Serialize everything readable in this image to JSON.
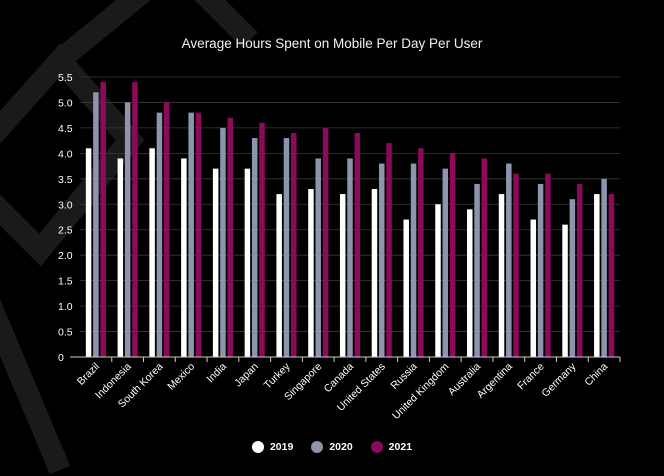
{
  "chart_data": {
    "type": "bar",
    "title": "Average Hours Spent on Mobile Per Day Per User",
    "xlabel": "",
    "ylabel": "",
    "ylim": [
      0,
      5.5
    ],
    "yticks": [
      "0",
      "0.5",
      "1.0",
      "1.5",
      "2.0",
      "2.5",
      "3.0",
      "3.5",
      "4.0",
      "4.5",
      "5.0",
      "5.5"
    ],
    "grid": true,
    "legend_position": "bottom-center",
    "categories": [
      "Brazil",
      "Indonesia",
      "South Korea",
      "Mexico",
      "India",
      "Japan",
      "Turkey",
      "Singapore",
      "Canada",
      "United States",
      "Russia",
      "United Kingdom",
      "Australia",
      "Argentina",
      "France",
      "Germany",
      "China"
    ],
    "series": [
      {
        "name": "2019",
        "color": "#ffffff",
        "values": [
          4.1,
          3.9,
          4.1,
          3.9,
          3.7,
          3.7,
          3.2,
          3.3,
          3.2,
          3.3,
          2.7,
          3.0,
          2.9,
          3.2,
          2.7,
          2.6,
          3.2
        ]
      },
      {
        "name": "2020",
        "color": "#8c95ab",
        "values": [
          5.2,
          5.0,
          4.8,
          4.8,
          4.5,
          4.3,
          4.3,
          3.9,
          3.9,
          3.8,
          3.8,
          3.7,
          3.4,
          3.8,
          3.4,
          3.1,
          3.5
        ]
      },
      {
        "name": "2021",
        "color": "#8c0a5a",
        "values": [
          5.4,
          5.4,
          5.0,
          4.8,
          4.7,
          4.6,
          4.4,
          4.5,
          4.4,
          4.2,
          4.1,
          4.0,
          3.9,
          3.6,
          3.6,
          3.4,
          3.2
        ]
      }
    ]
  }
}
